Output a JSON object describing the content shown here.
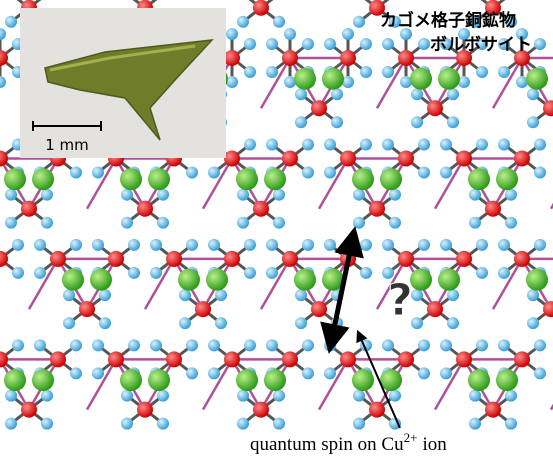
{
  "title": {
    "line1": "カゴメ格子銅鉱物",
    "line2": "ボルボサイト"
  },
  "inset": {
    "scale_label": "1 mm"
  },
  "question": "?",
  "caption": {
    "text": "quantum spin on Cu",
    "superscript": "2+",
    "suffix": "ion"
  }
}
